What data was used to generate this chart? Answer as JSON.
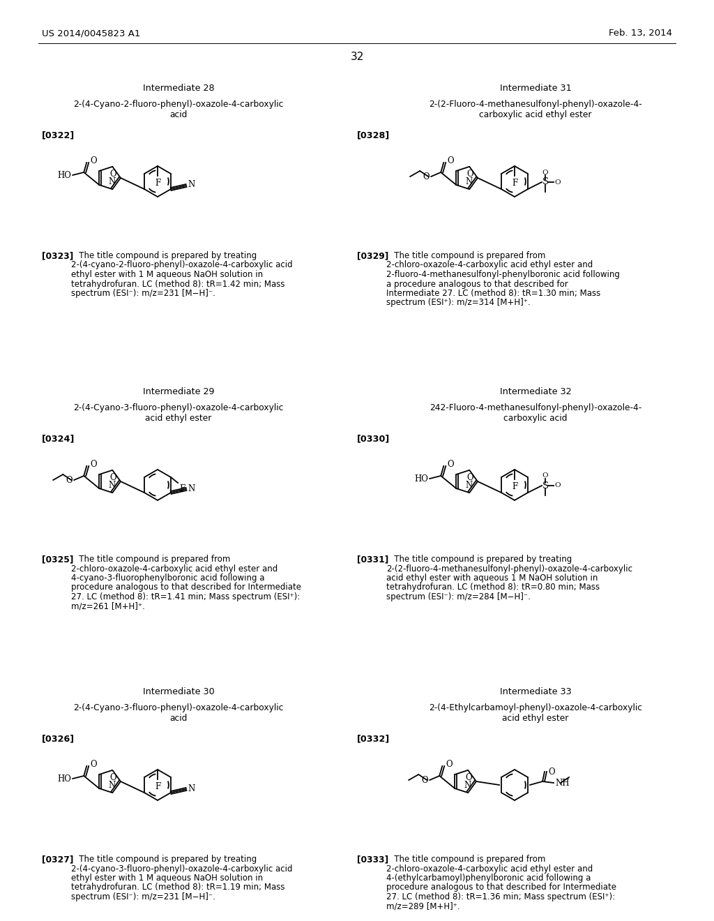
{
  "background_color": "#ffffff",
  "header_left": "US 2014/0045823 A1",
  "header_right": "Feb. 13, 2014",
  "page_number": "32",
  "sections": [
    {
      "title": "Intermediate 28",
      "name": "2-(4-Cyano-2-fluoro-phenyl)-oxazole-4-carboxylic\nacid",
      "ref": "[0322]",
      "para_tag": "[0323]",
      "paragraph": "The title compound is prepared by treating 2-(4-cyano-2-fluoro-phenyl)-oxazole-4-carboxylic  acid  ethyl ester with 1 M aqueous NaOH solution in tetrahydrofuran. LC (method 8):  tR=1.42 min; Mass spectrum (ESI⁻): m/z=231 [M−H]⁻.",
      "col": 0,
      "row": 0,
      "img_desc": "structure_28"
    },
    {
      "title": "Intermediate 31",
      "name": "2-(2-Fluoro-4-methanesulfonyl-phenyl)-oxazole-4-\ncarboxylic acid ethyl ester",
      "ref": "[0328]",
      "para_tag": "[0329]",
      "paragraph": "The title compound is prepared from 2-chloro-oxazole-4-carboxylic acid ethyl ester and 2-fluoro-4-methanesulfonyl-phenylboronic acid following a procedure analogous to that described for Intermediate 27. LC (method 8): tR=1.30 min; Mass spectrum (ESI⁺): m/z=314 [M+H]⁺.",
      "col": 1,
      "row": 0,
      "img_desc": "structure_31"
    },
    {
      "title": "Intermediate 29",
      "name": "2-(4-Cyano-3-fluoro-phenyl)-oxazole-4-carboxylic\nacid ethyl ester",
      "ref": "[0324]",
      "para_tag": "[0325]",
      "paragraph": "The title compound is prepared from 2-chloro-oxazole-4-carboxylic acid ethyl ester and 4-cyano-3-fluorophenylboronic acid following a procedure analogous to that described for Intermediate 27. LC (method 8): tR=1.41 min; Mass spectrum (ESI⁺): m/z=261 [M+H]⁺.",
      "col": 0,
      "row": 1,
      "img_desc": "structure_29"
    },
    {
      "title": "Intermediate 32",
      "name": "242-Fluoro-4-methanesulfonyl-phenyl)-oxazole-4-\ncarboxylic acid",
      "ref": "[0330]",
      "para_tag": "[0331]",
      "paragraph": "The title compound is prepared by treating 2-(2-fluoro-4-methanesulfonyl-phenyl)-oxazole-4-carboxylic acid ethyl ester with aqueous 1 M NaOH solution in tetrahydrofuran.  LC  (method 8):  tR=0.80 min;  Mass  spectrum (ESI⁻): m/z=284 [M−H]⁻.",
      "col": 1,
      "row": 1,
      "img_desc": "structure_32"
    },
    {
      "title": "Intermediate 30",
      "name": "2-(4-Cyano-3-fluoro-phenyl)-oxazole-4-carboxylic\nacid",
      "ref": "[0326]",
      "para_tag": "[0327]",
      "paragraph": "The title compound is prepared by treating 2-(4-cyano-3-fluoro-phenyl)-oxazole-4-carboxylic  acid  ethyl ester with 1 M aqueous NaOH solution in tetrahydrofuran. LC (method 8): tR=1.19 min; Mass spectrum (ESI⁻): m/z=231 [M−H]⁻.",
      "col": 0,
      "row": 2,
      "img_desc": "structure_30"
    },
    {
      "title": "Intermediate 33",
      "name": "2-(4-Ethylcarbamoyl-phenyl)-oxazole-4-carboxylic\nacid ethyl ester",
      "ref": "[0332]",
      "para_tag": "[0333]",
      "paragraph": "The title compound is prepared from 2-chloro-oxazole-4-carboxylic acid ethyl ester and 4-(ethylcarbamoyl)phenylboronic acid following a procedure analogous to that described for Intermediate 27. LC (method 8): tR=1.36 min; Mass spectrum (ESI⁺): m/z=289 [M+H]⁺.",
      "col": 1,
      "row": 2,
      "img_desc": "structure_33"
    }
  ]
}
